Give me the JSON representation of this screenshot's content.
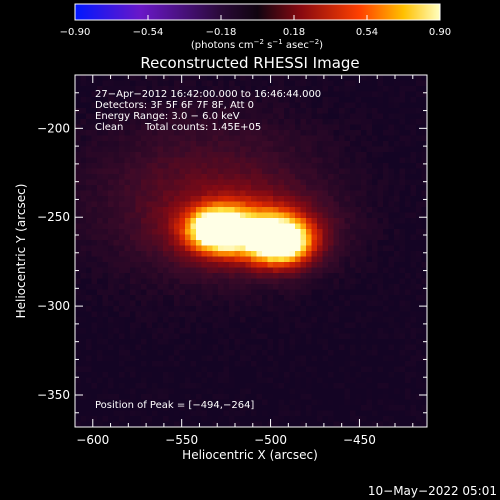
{
  "chart_data": {
    "type": "heatmap",
    "title": "Reconstructed RHESSI Image",
    "xlabel": "Heliocentric X (arcsec)",
    "ylabel": "Heliocentric Y (arcsec)",
    "xlim": [
      -610,
      -412
    ],
    "ylim": [
      -368,
      -170
    ],
    "x_ticks": [
      -600,
      -550,
      -500,
      -450
    ],
    "y_ticks": [
      -200,
      -250,
      -300,
      -350
    ],
    "x_tick_labels": [
      "−600",
      "−550",
      "−500",
      "−450"
    ],
    "y_tick_labels": [
      "−200",
      "−250",
      "−300",
      "−350"
    ],
    "colorbar": {
      "range": [
        -0.9,
        0.9
      ],
      "ticks": [
        -0.9,
        -0.54,
        -0.18,
        0.18,
        0.54,
        0.9
      ],
      "tick_labels": [
        "−0.90",
        "−0.54",
        "−0.18",
        "0.18",
        "0.54",
        "0.90"
      ],
      "unit_parts": [
        "(photons cm",
        "−2",
        " s",
        "−1",
        " asec",
        "−2",
        ")"
      ]
    },
    "sources": [
      {
        "x": -530,
        "y": -257,
        "amp": 0.85,
        "sx": 11,
        "sy": 8
      },
      {
        "x": -494,
        "y": -264,
        "amp": 0.9,
        "sx": 12,
        "sy": 9
      },
      {
        "x": -512,
        "y": -258,
        "amp": 0.55,
        "sx": 26,
        "sy": 13
      },
      {
        "x": -535,
        "y": -238,
        "amp": 0.22,
        "sx": 45,
        "sy": 30
      }
    ],
    "annotations": {
      "time": "27−Apr−2012 16:42:00.000 to 16:46:44.000",
      "detectors": "Detectors: 3F 5F 6F 7F 8F, Att 0",
      "energy": "Energy Range: 3.0 − 6.0 keV",
      "clean_label": "Clean",
      "counts": "Total counts: 1.45E+05",
      "peak": "Position of Peak = [−494,−264]"
    },
    "footer_date": "10−May−2022 05:01"
  }
}
